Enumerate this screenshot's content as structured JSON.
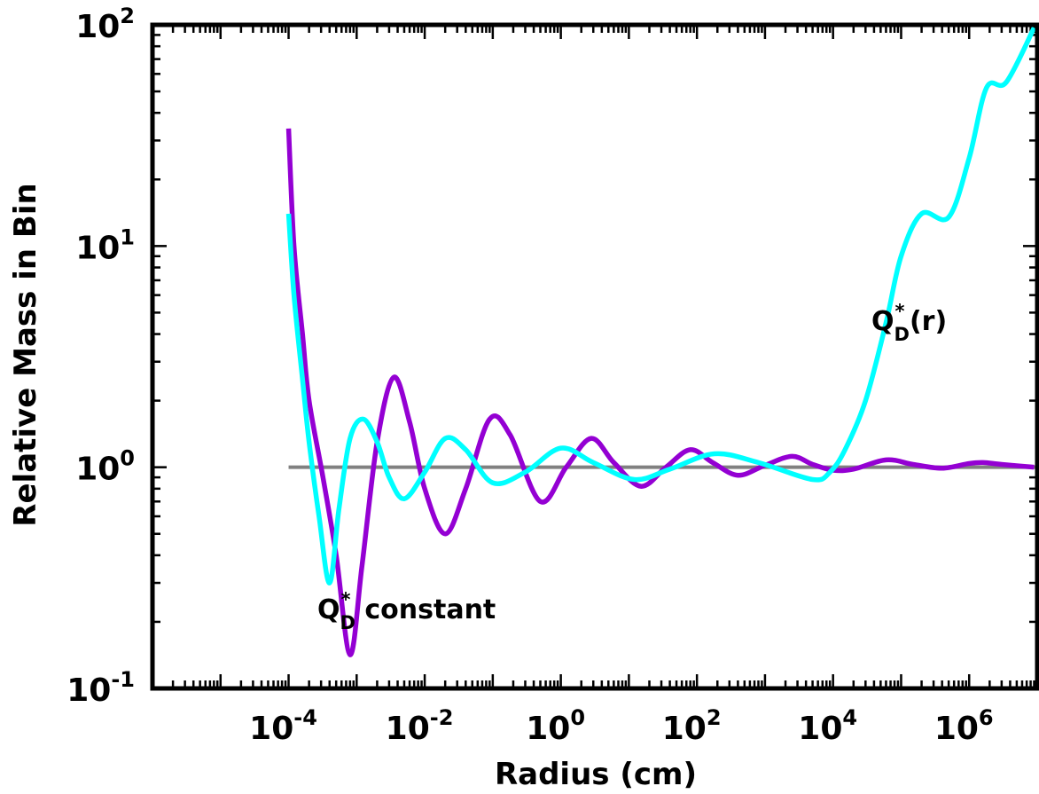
{
  "chart_data": {
    "type": "line",
    "xlabel": "Radius (cm)",
    "ylabel": "Relative Mass in Bin",
    "x_scale": "log",
    "y_scale": "log",
    "xlim": [
      1e-06,
      10000000
    ],
    "ylim": [
      0.1,
      100
    ],
    "x_ticks": [
      {
        "base": "10",
        "exp": "-4"
      },
      {
        "base": "10",
        "exp": "-2"
      },
      {
        "base": "10",
        "exp": "0"
      },
      {
        "base": "10",
        "exp": "2"
      },
      {
        "base": "10",
        "exp": "4"
      },
      {
        "base": "10",
        "exp": "6"
      }
    ],
    "y_ticks": [
      {
        "base": "10",
        "exp": "-1"
      },
      {
        "base": "10",
        "exp": "0"
      },
      {
        "base": "10",
        "exp": "1"
      },
      {
        "base": "10",
        "exp": "2"
      }
    ],
    "grid": false,
    "reference_line": {
      "y": 1.0,
      "color": "#808080"
    },
    "annotations": {
      "qd_constant": {
        "main": "Q",
        "sup": "*",
        "sub": "D",
        "rest": " constant"
      },
      "qd_r": {
        "main": "Q",
        "sup": "*",
        "sub": "D",
        "rest": "(r)"
      }
    },
    "series": [
      {
        "color": "#9400D3",
        "x": [
          0.0001,
          0.00012,
          0.00016,
          0.0002,
          0.00032,
          0.0005,
          0.0008,
          0.0012,
          0.002,
          0.0035,
          0.006,
          0.01,
          0.02,
          0.04,
          0.09,
          0.18,
          0.5,
          1.2,
          2.8,
          6,
          15,
          35,
          80,
          170,
          400,
          1000,
          2500,
          5000,
          10000,
          20000,
          60000,
          150000,
          400000,
          1000000,
          1600000,
          3000000,
          9000000
        ],
        "y": [
          34,
          10,
          4.0,
          2.0,
          0.9,
          0.4,
          0.142,
          0.36,
          1.3,
          2.55,
          1.6,
          0.8,
          0.5,
          0.8,
          1.65,
          1.4,
          0.7,
          1.0,
          1.35,
          1.05,
          0.82,
          1.0,
          1.2,
          1.05,
          0.92,
          1.02,
          1.12,
          1.03,
          0.97,
          0.98,
          1.08,
          1.03,
          0.99,
          1.04,
          1.05,
          1.03,
          1.0
        ]
      },
      {
        "color": "#00FFFF",
        "x": [
          0.0001,
          0.00012,
          0.00016,
          0.0002,
          0.00028,
          0.0004,
          0.00055,
          0.0008,
          0.00125,
          0.002,
          0.003,
          0.005,
          0.01,
          0.02,
          0.04,
          0.1,
          0.3,
          1.0,
          3,
          12,
          40,
          180,
          800,
          5000,
          9000,
          15000,
          30000,
          60000,
          100000,
          200000,
          500000,
          1000000,
          1800000,
          3500000,
          9000000
        ],
        "y": [
          14,
          6,
          2.5,
          1.3,
          0.6,
          0.3,
          0.65,
          1.35,
          1.65,
          1.3,
          0.9,
          0.72,
          0.95,
          1.35,
          1.2,
          0.85,
          0.95,
          1.22,
          1.05,
          0.88,
          0.98,
          1.15,
          1.05,
          0.88,
          0.95,
          1.2,
          2.0,
          4.5,
          9.0,
          14.0,
          13.5,
          25,
          52,
          55,
          97
        ]
      }
    ]
  }
}
